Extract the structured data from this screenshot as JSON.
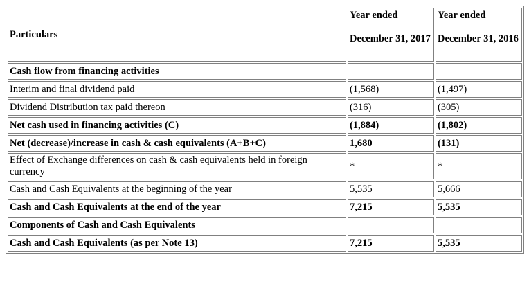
{
  "header": {
    "particulars": "Particulars",
    "col1_line1": "Year ended",
    "col1_line2": "December 31, 2017",
    "col2_line1": "Year ended",
    "col2_line2": "December 31, 2016"
  },
  "rows": [
    {
      "label": "Cash flow from financing activities",
      "v2017": "",
      "v2016": "",
      "bold": true
    },
    {
      "label": "Interim and final dividend paid",
      "v2017": "(1,568)",
      "v2016": "(1,497)",
      "bold": false
    },
    {
      "label": "Dividend Distribution tax paid thereon",
      "v2017": "(316)",
      "v2016": "(305)",
      "bold": false
    },
    {
      "label": "Net cash used in financing activities (C)",
      "v2017": "(1,884)",
      "v2016": "(1,802)",
      "bold": true
    },
    {
      "label": "Net (decrease)/increase in cash & cash equivalents (A+B+C)",
      "v2017": "1,680",
      "v2016": "(131)",
      "bold": true
    },
    {
      "label": "Effect of Exchange differences on cash & cash equivalents held in foreign currency",
      "v2017": "*",
      "v2016": "*",
      "bold": false
    },
    {
      "label": "Cash and Cash Equivalents at the beginning of the year",
      "v2017": "5,535",
      "v2016": "5,666",
      "bold": false
    },
    {
      "label": "Cash and Cash Equivalents at the end of the year",
      "v2017": "7,215",
      "v2016": "5,535",
      "bold": true
    },
    {
      "label": "Components of Cash and Cash Equivalents",
      "v2017": "",
      "v2016": "",
      "bold": true
    },
    {
      "label": "Cash and Cash Equivalents (as per Note 13)",
      "v2017": "7,215",
      "v2016": "5,535",
      "bold": true
    }
  ]
}
